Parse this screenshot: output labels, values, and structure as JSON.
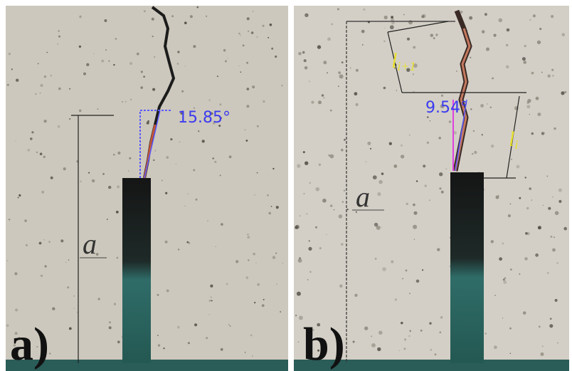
{
  "panels": [
    {
      "label": "a)",
      "angle": "15.85°",
      "depth_label": "a"
    },
    {
      "label": "b)",
      "angle": "9.54°",
      "depth_label": "a",
      "segment_labels": [
        {
          "main": "l",
          "sub": "i+1"
        },
        {
          "main": "l",
          "sub": "i"
        }
      ]
    }
  ]
}
